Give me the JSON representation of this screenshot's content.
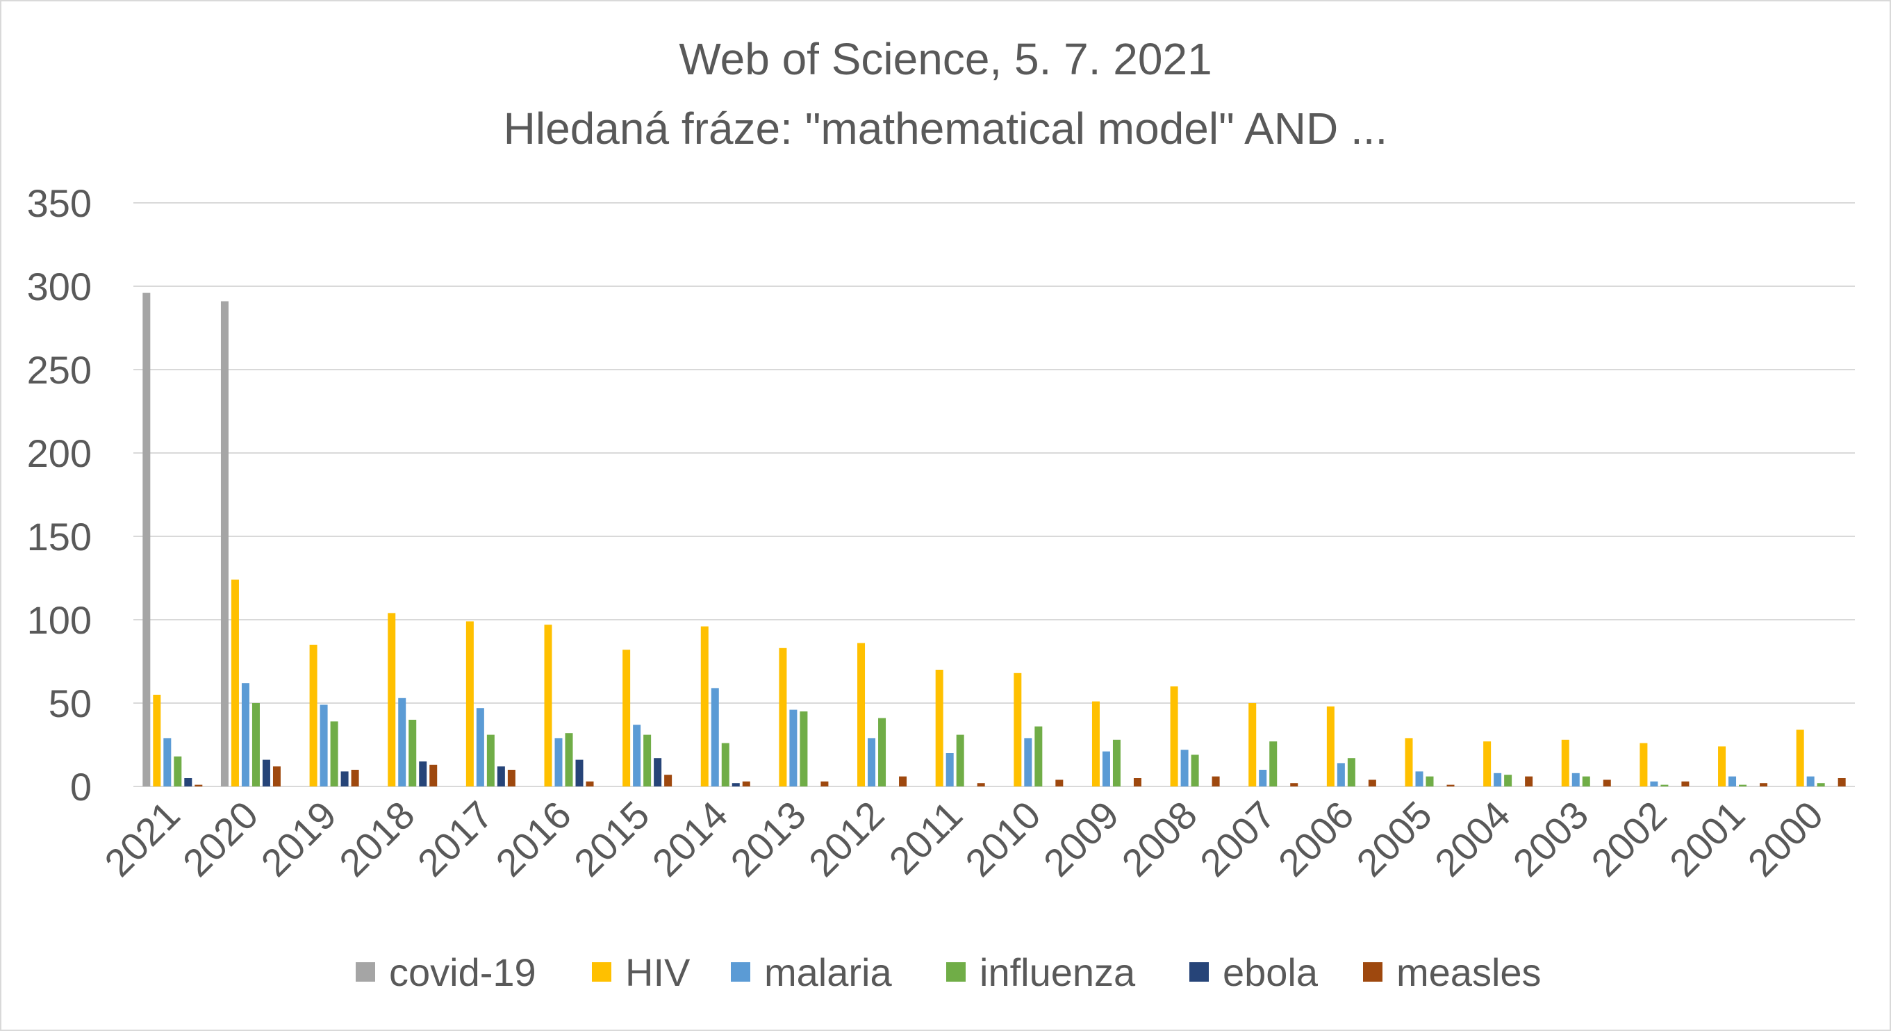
{
  "chart_data": {
    "type": "bar",
    "title": [
      "Web of Science, 5. 7. 2021",
      "Hledaná fráze: \"mathematical model\" AND ..."
    ],
    "xlabel": "",
    "ylabel": "",
    "ylim": [
      0,
      350
    ],
    "yticks": [
      0,
      50,
      100,
      150,
      200,
      250,
      300,
      350
    ],
    "grid": true,
    "legend_position": "bottom",
    "categories": [
      "2021",
      "2020",
      "2019",
      "2018",
      "2017",
      "2016",
      "2015",
      "2014",
      "2013",
      "2012",
      "2011",
      "2010",
      "2009",
      "2008",
      "2007",
      "2006",
      "2005",
      "2004",
      "2003",
      "2002",
      "2001",
      "2000"
    ],
    "series": [
      {
        "name": "covid-19",
        "color": "#a5a5a5",
        "values": [
          296,
          291,
          0,
          0,
          0,
          0,
          0,
          0,
          0,
          0,
          0,
          0,
          0,
          0,
          0,
          0,
          0,
          0,
          0,
          0,
          0,
          0
        ]
      },
      {
        "name": "HIV",
        "color": "#ffc000",
        "values": [
          55,
          124,
          85,
          104,
          99,
          97,
          82,
          96,
          83,
          86,
          70,
          68,
          51,
          60,
          50,
          48,
          29,
          27,
          28,
          26,
          24,
          34
        ]
      },
      {
        "name": "malaria",
        "color": "#5b9bd5",
        "values": [
          29,
          62,
          49,
          53,
          47,
          29,
          37,
          59,
          46,
          29,
          20,
          29,
          21,
          22,
          10,
          14,
          9,
          8,
          8,
          3,
          6,
          6
        ]
      },
      {
        "name": "influenza",
        "color": "#70ad47",
        "values": [
          18,
          50,
          39,
          40,
          31,
          32,
          31,
          26,
          45,
          41,
          31,
          36,
          28,
          19,
          27,
          17,
          6,
          7,
          6,
          1,
          1,
          2
        ]
      },
      {
        "name": "ebola",
        "color": "#264478",
        "values": [
          5,
          16,
          9,
          15,
          12,
          16,
          17,
          2,
          0,
          0,
          0,
          0,
          0,
          0,
          0,
          0,
          0,
          0,
          0,
          0,
          0,
          0
        ]
      },
      {
        "name": "measles",
        "color": "#9e480e",
        "values": [
          1,
          12,
          10,
          13,
          10,
          3,
          7,
          3,
          3,
          6,
          2,
          4,
          5,
          6,
          2,
          4,
          1,
          6,
          4,
          3,
          2,
          5
        ]
      }
    ]
  }
}
